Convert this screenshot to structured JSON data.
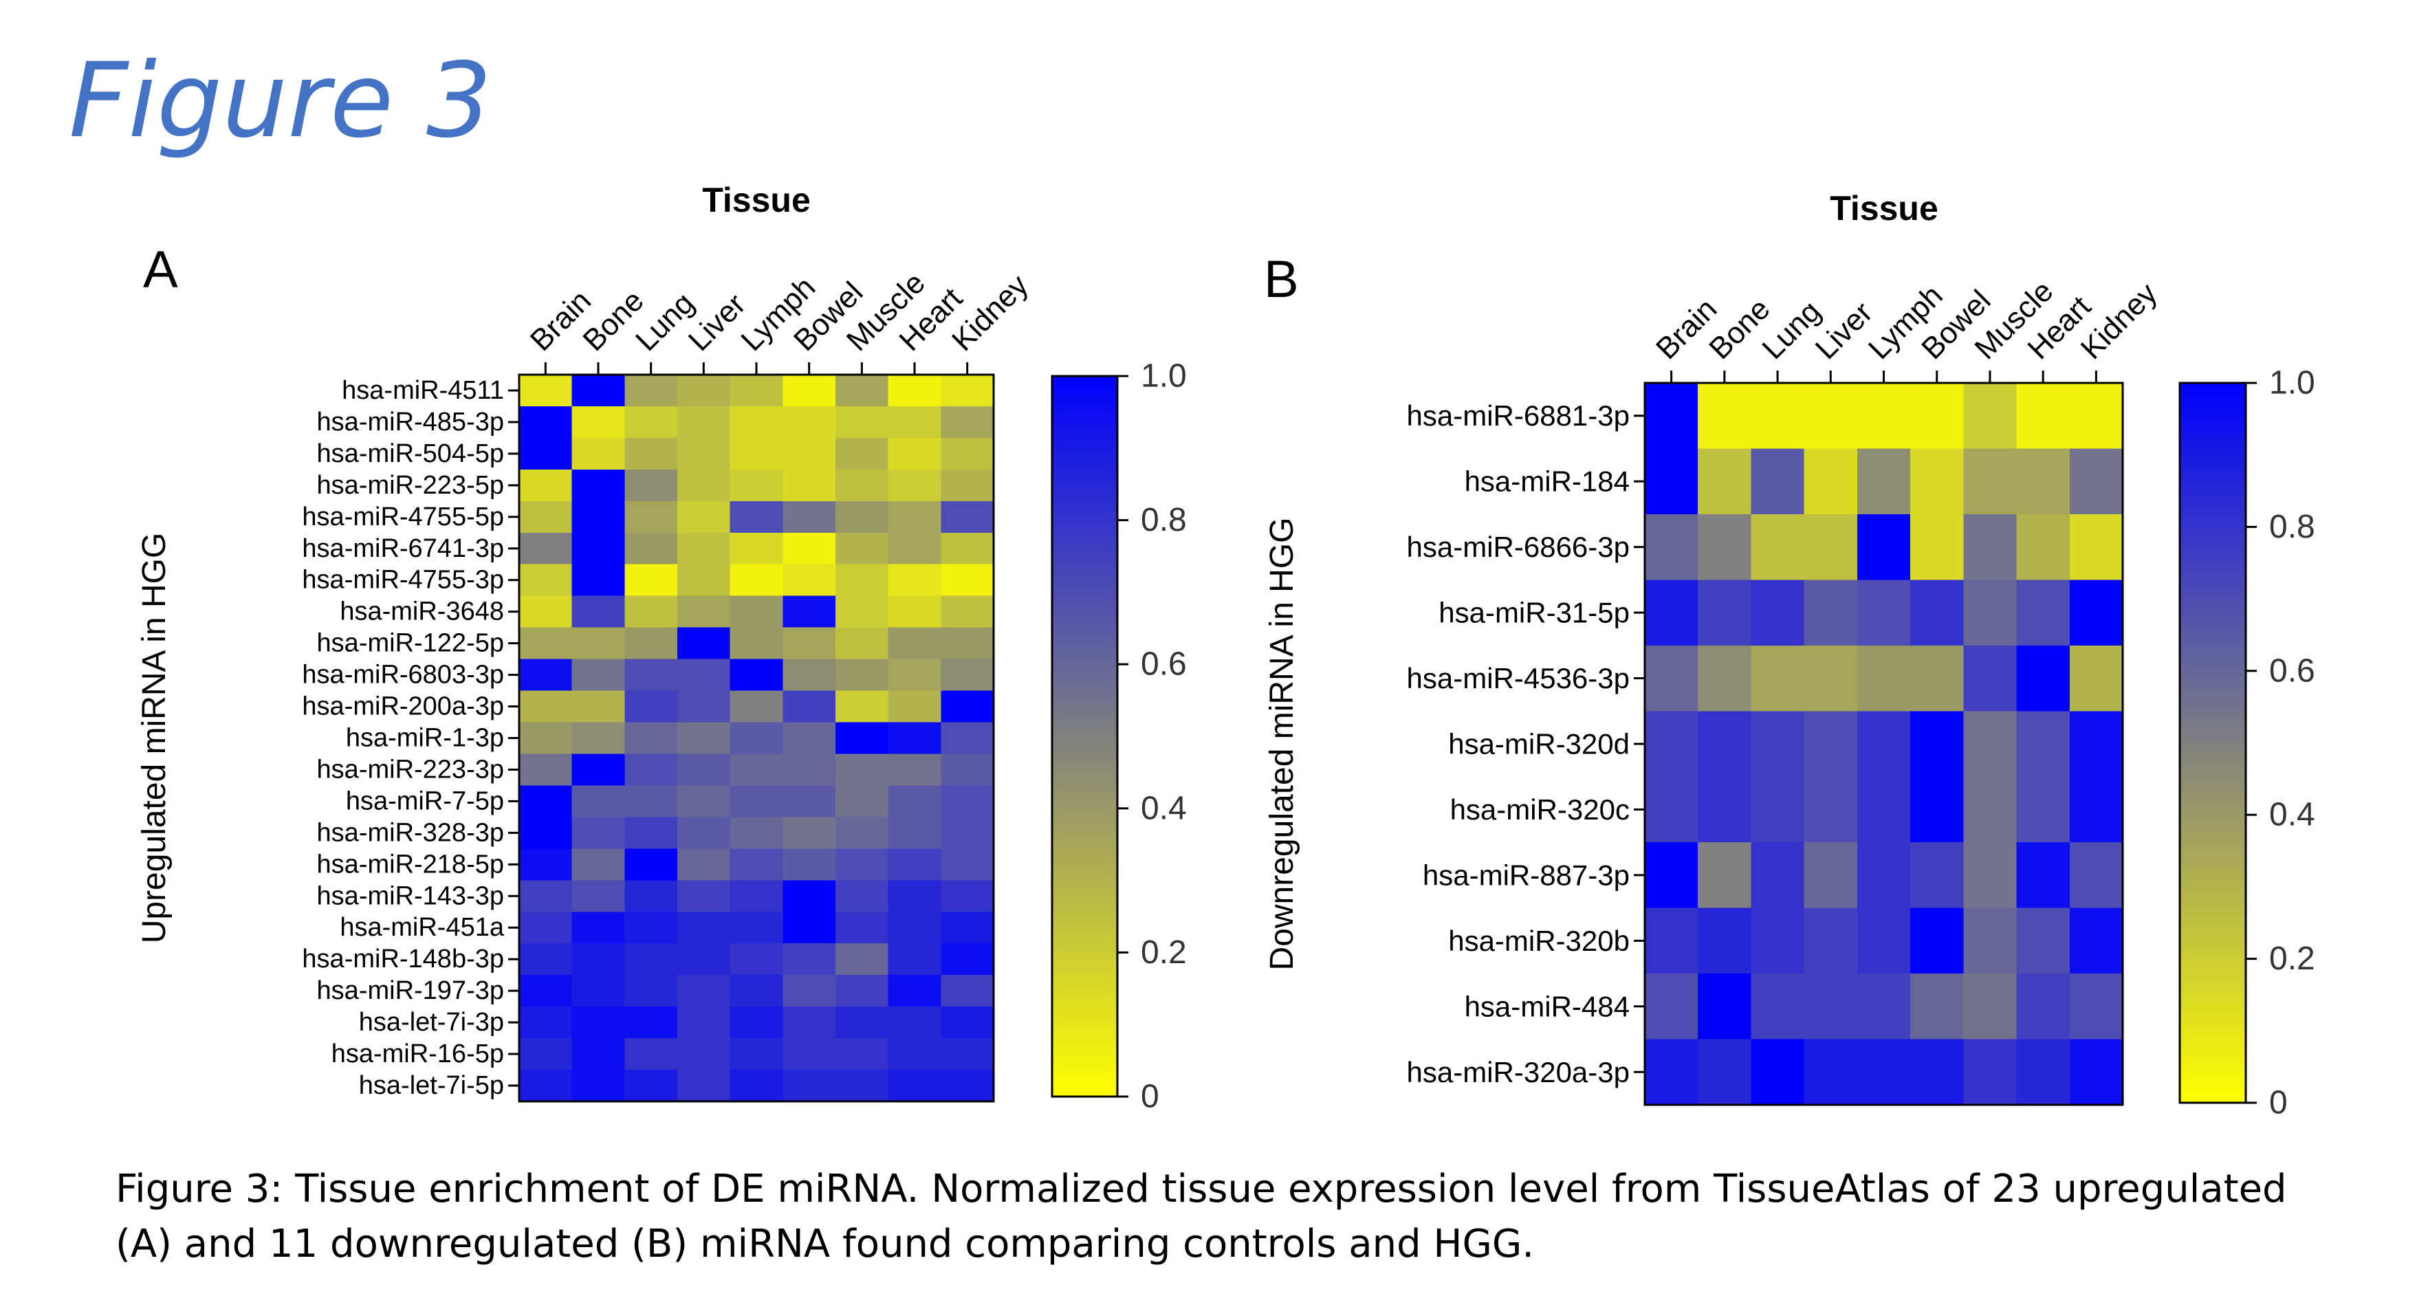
{
  "title": "Figure 3",
  "caption": "Figure 3: Tissue enrichment of DE miRNA. Normalized tissue expression level from TissueAtlas of 23 upregulated (A) and 11 downregulated (B) miRNA found comparing controls and HGG.",
  "colors": {
    "low": "#ffff00",
    "mid": "#808080",
    "high": "#0000ff",
    "title": "#4472c4"
  },
  "chart_data": [
    {
      "type": "heatmap",
      "panel": "A",
      "xlabel": "Tissue",
      "ylabel": "Upregulated miRNA in HGG",
      "x": [
        "Brain",
        "Bone",
        "Lung",
        "Liver",
        "Lymph",
        "Bowel",
        "Muscle",
        "Heart",
        "Kidney"
      ],
      "y": [
        "hsa-miR-4511",
        "hsa-miR-485-3p",
        "hsa-miR-504-5p",
        "hsa-miR-223-5p",
        "hsa-miR-4755-5p",
        "hsa-miR-6741-3p",
        "hsa-miR-4755-3p",
        "hsa-miR-3648",
        "hsa-miR-122-5p",
        "hsa-miR-6803-3p",
        "hsa-miR-200a-3p",
        "hsa-miR-1-3p",
        "hsa-miR-223-3p",
        "hsa-miR-7-5p",
        "hsa-miR-328-3p",
        "hsa-miR-218-5p",
        "hsa-miR-143-3p",
        "hsa-miR-451a",
        "hsa-miR-148b-3p",
        "hsa-miR-197-3p",
        "hsa-let-7i-3p",
        "hsa-miR-16-5p",
        "hsa-let-7i-5p"
      ],
      "values": [
        [
          0.1,
          1.0,
          0.35,
          0.3,
          0.25,
          0.05,
          0.35,
          0.05,
          0.1
        ],
        [
          1.0,
          0.1,
          0.2,
          0.25,
          0.15,
          0.15,
          0.2,
          0.2,
          0.35
        ],
        [
          1.0,
          0.15,
          0.3,
          0.25,
          0.15,
          0.15,
          0.3,
          0.15,
          0.25
        ],
        [
          0.15,
          1.0,
          0.45,
          0.25,
          0.2,
          0.15,
          0.25,
          0.2,
          0.3
        ],
        [
          0.25,
          1.0,
          0.35,
          0.2,
          0.7,
          0.55,
          0.4,
          0.35,
          0.7
        ],
        [
          0.5,
          1.0,
          0.4,
          0.25,
          0.15,
          0.05,
          0.3,
          0.35,
          0.25
        ],
        [
          0.2,
          1.0,
          0.05,
          0.25,
          0.05,
          0.1,
          0.2,
          0.1,
          0.05
        ],
        [
          0.15,
          0.75,
          0.25,
          0.35,
          0.4,
          0.95,
          0.2,
          0.15,
          0.25
        ],
        [
          0.35,
          0.35,
          0.4,
          1.0,
          0.4,
          0.35,
          0.25,
          0.4,
          0.4
        ],
        [
          0.95,
          0.55,
          0.7,
          0.7,
          1.0,
          0.45,
          0.4,
          0.35,
          0.45
        ],
        [
          0.3,
          0.3,
          0.75,
          0.7,
          0.5,
          0.75,
          0.2,
          0.3,
          1.0
        ],
        [
          0.4,
          0.45,
          0.6,
          0.55,
          0.65,
          0.6,
          1.0,
          0.95,
          0.7
        ],
        [
          0.55,
          1.0,
          0.7,
          0.65,
          0.6,
          0.6,
          0.55,
          0.55,
          0.65
        ],
        [
          1.0,
          0.65,
          0.65,
          0.6,
          0.65,
          0.65,
          0.55,
          0.65,
          0.7
        ],
        [
          1.0,
          0.7,
          0.75,
          0.65,
          0.6,
          0.55,
          0.6,
          0.65,
          0.7
        ],
        [
          0.95,
          0.6,
          1.0,
          0.6,
          0.7,
          0.65,
          0.7,
          0.75,
          0.7
        ],
        [
          0.75,
          0.7,
          0.85,
          0.75,
          0.8,
          1.0,
          0.75,
          0.85,
          0.8
        ],
        [
          0.8,
          0.95,
          0.9,
          0.85,
          0.85,
          1.0,
          0.8,
          0.85,
          0.9
        ],
        [
          0.85,
          0.9,
          0.85,
          0.85,
          0.8,
          0.75,
          0.6,
          0.85,
          0.95
        ],
        [
          0.95,
          0.9,
          0.85,
          0.8,
          0.85,
          0.7,
          0.75,
          0.95,
          0.75
        ],
        [
          0.9,
          0.95,
          0.95,
          0.8,
          0.9,
          0.8,
          0.85,
          0.85,
          0.9
        ],
        [
          0.85,
          0.95,
          0.8,
          0.8,
          0.85,
          0.8,
          0.8,
          0.85,
          0.85
        ],
        [
          0.9,
          0.95,
          0.9,
          0.8,
          0.9,
          0.85,
          0.85,
          0.9,
          0.9
        ]
      ],
      "colorbar": {
        "min": 0,
        "max": 1.0,
        "ticks": [
          "1.0",
          "0.8",
          "0.6",
          "0.4",
          "0.2",
          "0"
        ]
      }
    },
    {
      "type": "heatmap",
      "panel": "B",
      "xlabel": "Tissue",
      "ylabel": "Downregulated miRNA in HGG",
      "x": [
        "Brain",
        "Bone",
        "Lung",
        "Liver",
        "Lymph",
        "Bowel",
        "Muscle",
        "Heart",
        "Kidney"
      ],
      "y": [
        "hsa-miR-6881-3p",
        "hsa-miR-184",
        "hsa-miR-6866-3p",
        "hsa-miR-31-5p",
        "hsa-miR-4536-3p",
        "hsa-miR-320d",
        "hsa-miR-320c",
        "hsa-miR-887-3p",
        "hsa-miR-320b",
        "hsa-miR-484",
        "hsa-miR-320a-3p"
      ],
      "values": [
        [
          1.0,
          0.05,
          0.05,
          0.05,
          0.05,
          0.05,
          0.2,
          0.05,
          0.05
        ],
        [
          1.0,
          0.25,
          0.65,
          0.15,
          0.45,
          0.15,
          0.35,
          0.35,
          0.55
        ],
        [
          0.6,
          0.5,
          0.25,
          0.25,
          1.0,
          0.15,
          0.55,
          0.3,
          0.15
        ],
        [
          0.9,
          0.75,
          0.8,
          0.65,
          0.7,
          0.8,
          0.6,
          0.7,
          1.0
        ],
        [
          0.6,
          0.45,
          0.35,
          0.35,
          0.4,
          0.4,
          0.75,
          1.0,
          0.3
        ],
        [
          0.75,
          0.8,
          0.75,
          0.7,
          0.8,
          1.0,
          0.55,
          0.7,
          0.95
        ],
        [
          0.75,
          0.8,
          0.75,
          0.7,
          0.8,
          1.0,
          0.55,
          0.7,
          0.95
        ],
        [
          1.0,
          0.5,
          0.8,
          0.6,
          0.8,
          0.75,
          0.55,
          0.95,
          0.7
        ],
        [
          0.8,
          0.85,
          0.8,
          0.75,
          0.8,
          1.0,
          0.6,
          0.7,
          0.95
        ],
        [
          0.7,
          1.0,
          0.75,
          0.75,
          0.75,
          0.6,
          0.55,
          0.75,
          0.7
        ],
        [
          0.9,
          0.85,
          1.0,
          0.9,
          0.9,
          0.9,
          0.8,
          0.85,
          0.95
        ]
      ],
      "colorbar": {
        "min": 0,
        "max": 1.0,
        "ticks": [
          "1.0",
          "0.8",
          "0.6",
          "0.4",
          "0.2",
          "0"
        ]
      }
    }
  ]
}
